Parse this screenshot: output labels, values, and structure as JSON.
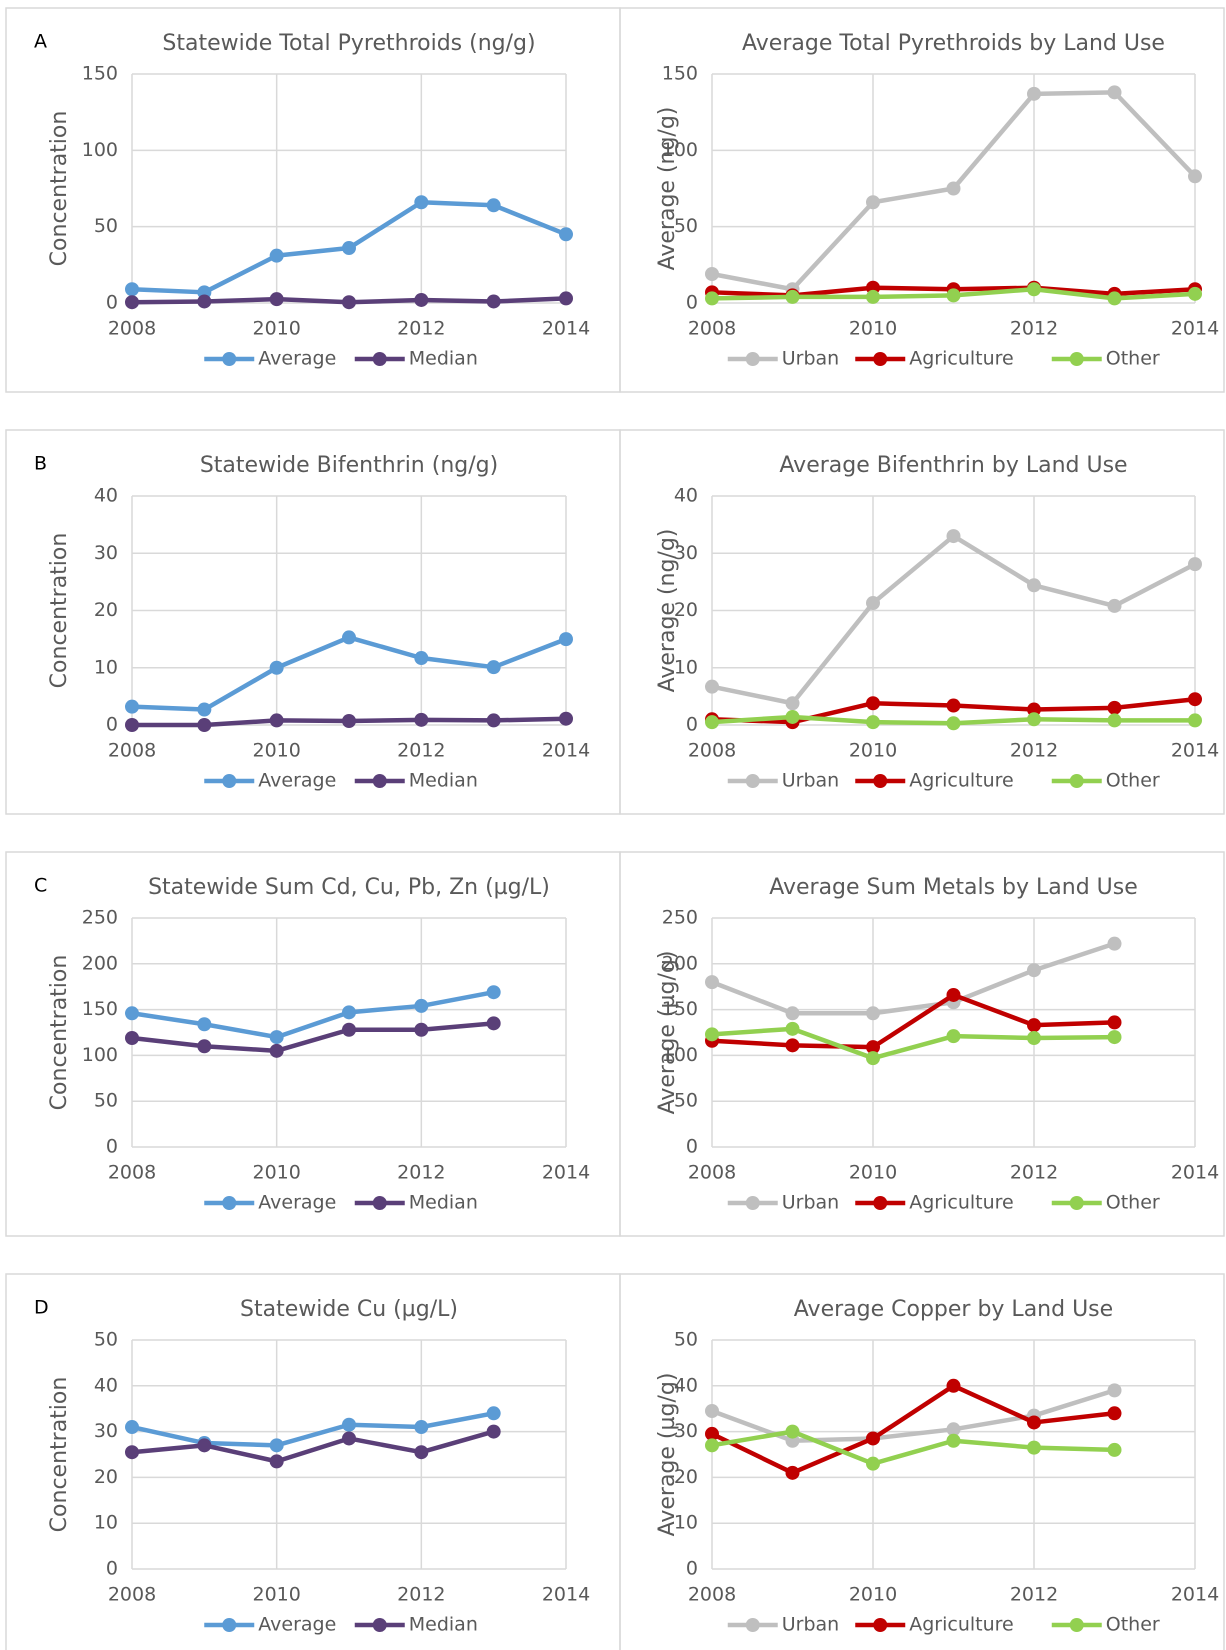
{
  "panels": [
    "A",
    "B",
    "C",
    "D"
  ],
  "chart_data": [
    {
      "type": "line",
      "title": "Statewide Total Pyrethroids (ng/g)",
      "y_label": "Concentration",
      "x": [
        2008,
        2009,
        2010,
        2011,
        2012,
        2013,
        2014
      ],
      "xlim": [
        2008,
        2014
      ],
      "xticks": [
        2008,
        2010,
        2012,
        2014
      ],
      "ylim": [
        0,
        150
      ],
      "yticks": [
        0,
        50,
        100,
        150
      ],
      "grid": true,
      "legend": "bottom",
      "series": [
        {
          "name": "Average",
          "color": "#5b9bd5",
          "values": [
            9,
            7,
            31,
            36,
            66,
            64,
            45
          ]
        },
        {
          "name": "Median",
          "color": "#5a3f78",
          "values": [
            0.5,
            1,
            2.5,
            0.5,
            2,
            1,
            3
          ]
        }
      ]
    },
    {
      "type": "line",
      "title": "Average Total Pyrethroids by Land Use",
      "y_label": "Average (ng/g)",
      "x": [
        2008,
        2009,
        2010,
        2011,
        2012,
        2013,
        2014
      ],
      "xlim": [
        2008,
        2014
      ],
      "xticks": [
        2008,
        2010,
        2012,
        2014
      ],
      "ylim": [
        0,
        150
      ],
      "yticks": [
        0,
        50,
        100,
        150
      ],
      "grid": true,
      "legend": "bottom",
      "series": [
        {
          "name": "Urban",
          "color": "#bfbfbf",
          "values": [
            19,
            9,
            66,
            75,
            137,
            138,
            83
          ]
        },
        {
          "name": "Agriculture",
          "color": "#c00000",
          "values": [
            7,
            5,
            10,
            9,
            10,
            6,
            9
          ]
        },
        {
          "name": "Other",
          "color": "#92d050",
          "values": [
            3,
            4,
            4,
            5,
            9,
            3,
            6
          ]
        }
      ]
    },
    {
      "type": "line",
      "title": "Statewide Bifenthrin (ng/g)",
      "y_label": "Concentration",
      "x": [
        2008,
        2009,
        2010,
        2011,
        2012,
        2013,
        2014
      ],
      "xlim": [
        2008,
        2014
      ],
      "xticks": [
        2008,
        2010,
        2012,
        2014
      ],
      "ylim": [
        0,
        40
      ],
      "yticks": [
        0,
        10,
        20,
        30,
        40
      ],
      "grid": true,
      "legend": "bottom",
      "series": [
        {
          "name": "Average",
          "color": "#5b9bd5",
          "values": [
            3.2,
            2.7,
            10,
            15.3,
            11.7,
            10.1,
            15
          ]
        },
        {
          "name": "Median",
          "color": "#5a3f78",
          "values": [
            0,
            0,
            0.8,
            0.7,
            0.9,
            0.8,
            1.1
          ]
        }
      ]
    },
    {
      "type": "line",
      "title": "Average Bifenthrin by Land Use",
      "y_label": "Average (ng/g)",
      "x": [
        2008,
        2009,
        2010,
        2011,
        2012,
        2013,
        2014
      ],
      "xlim": [
        2008,
        2014
      ],
      "xticks": [
        2008,
        2010,
        2012,
        2014
      ],
      "ylim": [
        0,
        40
      ],
      "yticks": [
        0,
        10,
        20,
        30,
        40
      ],
      "grid": true,
      "legend": "bottom",
      "series": [
        {
          "name": "Urban",
          "color": "#bfbfbf",
          "values": [
            6.7,
            3.8,
            21.3,
            33,
            24.4,
            20.8,
            28.1
          ]
        },
        {
          "name": "Agriculture",
          "color": "#c00000",
          "values": [
            1,
            0.5,
            3.8,
            3.4,
            2.7,
            3,
            4.5
          ]
        },
        {
          "name": "Other",
          "color": "#92d050",
          "values": [
            0.5,
            1.4,
            0.5,
            0.3,
            1,
            0.8,
            0.8
          ]
        }
      ]
    },
    {
      "type": "line",
      "title": "Statewide Sum Cd, Cu, Pb, Zn (µg/L)",
      "y_label": "Concentration",
      "x": [
        2008,
        2009,
        2010,
        2011,
        2012,
        2013
      ],
      "xlim": [
        2008,
        2014
      ],
      "xticks": [
        2008,
        2010,
        2012,
        2014
      ],
      "ylim": [
        0,
        250
      ],
      "yticks": [
        0,
        50,
        100,
        150,
        200,
        250
      ],
      "grid": true,
      "legend": "bottom",
      "series": [
        {
          "name": "Average",
          "color": "#5b9bd5",
          "values": [
            146,
            134,
            120,
            147,
            154,
            169
          ]
        },
        {
          "name": "Median",
          "color": "#5a3f78",
          "values": [
            119,
            110,
            105,
            128,
            128,
            135
          ]
        }
      ]
    },
    {
      "type": "line",
      "title": "Average Sum Metals by Land Use",
      "y_label": "Average (µg/g)",
      "x": [
        2008,
        2009,
        2010,
        2011,
        2012,
        2013
      ],
      "xlim": [
        2008,
        2014
      ],
      "xticks": [
        2008,
        2010,
        2012,
        2014
      ],
      "ylim": [
        0,
        250
      ],
      "yticks": [
        0,
        50,
        100,
        150,
        200,
        250
      ],
      "grid": true,
      "legend": "bottom",
      "series": [
        {
          "name": "Urban",
          "color": "#bfbfbf",
          "values": [
            180,
            146,
            146,
            158,
            193,
            222
          ]
        },
        {
          "name": "Agriculture",
          "color": "#c00000",
          "values": [
            116,
            111,
            109,
            166,
            133,
            136
          ]
        },
        {
          "name": "Other",
          "color": "#92d050",
          "values": [
            123,
            129,
            97,
            121,
            119,
            120
          ]
        }
      ]
    },
    {
      "type": "line",
      "title": "Statewide Cu (µg/L)",
      "y_label": "Concentration",
      "x": [
        2008,
        2009,
        2010,
        2011,
        2012,
        2013
      ],
      "xlim": [
        2008,
        2014
      ],
      "xticks": [
        2008,
        2010,
        2012,
        2014
      ],
      "ylim": [
        0,
        50
      ],
      "yticks": [
        0,
        10,
        20,
        30,
        40,
        50
      ],
      "grid": true,
      "legend": "bottom",
      "series": [
        {
          "name": "Average",
          "color": "#5b9bd5",
          "values": [
            31,
            27.5,
            27,
            31.5,
            31,
            34
          ]
        },
        {
          "name": "Median",
          "color": "#5a3f78",
          "values": [
            25.5,
            27,
            23.5,
            28.5,
            25.5,
            30
          ]
        }
      ]
    },
    {
      "type": "line",
      "title": "Average Copper by Land Use",
      "y_label": "Average (µg/g)",
      "x": [
        2008,
        2009,
        2010,
        2011,
        2012,
        2013
      ],
      "xlim": [
        2008,
        2014
      ],
      "xticks": [
        2008,
        2010,
        2012,
        2014
      ],
      "ylim": [
        0,
        50
      ],
      "yticks": [
        0,
        10,
        20,
        30,
        40,
        50
      ],
      "grid": true,
      "legend": "bottom",
      "series": [
        {
          "name": "Urban",
          "color": "#bfbfbf",
          "values": [
            34.5,
            28,
            28.5,
            30.5,
            33.5,
            39
          ]
        },
        {
          "name": "Agriculture",
          "color": "#c00000",
          "values": [
            29.5,
            21,
            28.5,
            40,
            32,
            34
          ]
        },
        {
          "name": "Other",
          "color": "#92d050",
          "values": [
            27,
            30,
            23,
            28,
            26.5,
            26
          ]
        }
      ]
    }
  ]
}
